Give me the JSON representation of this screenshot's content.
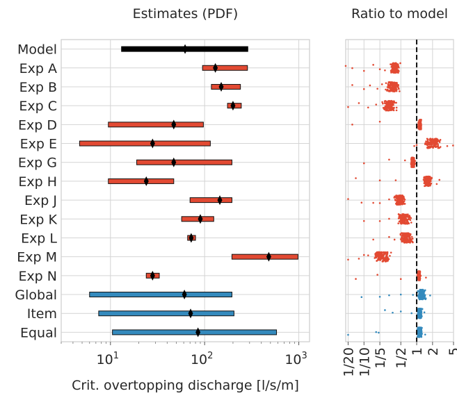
{
  "chart_data": [
    {
      "type": "interval",
      "title": "Estimates (PDF)",
      "xlabel": "Crit. overtopping discharge [l/s/m]",
      "xscale": "log",
      "xlim": [
        3,
        1300
      ],
      "xticks": [
        {
          "value": 10,
          "base": "10",
          "exp": "1"
        },
        {
          "value": 100,
          "base": "10",
          "exp": "2"
        },
        {
          "value": 1000,
          "base": "10",
          "exp": "3"
        }
      ],
      "rows": [
        {
          "label": "Model",
          "low": 13,
          "high": 290,
          "median": 62,
          "group": "model"
        },
        {
          "label": "Exp A",
          "low": 95,
          "high": 285,
          "median": 130,
          "group": "expert"
        },
        {
          "label": "Exp B",
          "low": 118,
          "high": 240,
          "median": 150,
          "group": "expert"
        },
        {
          "label": "Exp C",
          "low": 175,
          "high": 245,
          "median": 200,
          "group": "expert"
        },
        {
          "label": "Exp D",
          "low": 9.5,
          "high": 97,
          "median": 47,
          "group": "expert"
        },
        {
          "label": "Exp E",
          "low": 4.7,
          "high": 115,
          "median": 28,
          "group": "expert"
        },
        {
          "label": "Exp G",
          "low": 19,
          "high": 195,
          "median": 47,
          "group": "expert"
        },
        {
          "label": "Exp H",
          "low": 9.5,
          "high": 47,
          "median": 24,
          "group": "expert"
        },
        {
          "label": "Exp J",
          "low": 70,
          "high": 195,
          "median": 145,
          "group": "expert"
        },
        {
          "label": "Exp K",
          "low": 57,
          "high": 125,
          "median": 90,
          "group": "expert"
        },
        {
          "label": "Exp L",
          "low": 66,
          "high": 80,
          "median": 72,
          "group": "expert"
        },
        {
          "label": "Exp M",
          "low": 195,
          "high": 980,
          "median": 480,
          "group": "expert"
        },
        {
          "label": "Exp N",
          "low": 24,
          "high": 33,
          "median": 28,
          "group": "expert"
        },
        {
          "label": "Global",
          "low": 6,
          "high": 195,
          "median": 61,
          "group": "combined"
        },
        {
          "label": "Item",
          "low": 7.5,
          "high": 205,
          "median": 71,
          "group": "combined"
        },
        {
          "label": "Equal",
          "low": 10.5,
          "high": 580,
          "median": 85,
          "group": "combined"
        }
      ],
      "colors": {
        "model": "#000000",
        "expert": "#e24a33",
        "combined": "#348abd"
      }
    },
    {
      "type": "scatter",
      "title": "Ratio to model",
      "xscale": "log",
      "xlim": [
        0.045,
        5
      ],
      "reference_line": 1,
      "xticks": [
        {
          "value": 0.05,
          "label": "1/20"
        },
        {
          "value": 0.1,
          "label": "1/10"
        },
        {
          "value": 0.2,
          "label": "1/5"
        },
        {
          "value": 0.5,
          "label": "1/2"
        },
        {
          "value": 1,
          "label": "1"
        },
        {
          "value": 2,
          "label": "2"
        },
        {
          "value": 5,
          "label": "5"
        }
      ],
      "rows": [
        {
          "label": "Exp A",
          "core": [
            0.3,
            0.5
          ],
          "outliers": [
            0.045,
            0.06,
            0.1,
            0.15,
            0.2,
            0.25
          ]
        },
        {
          "label": "Exp B",
          "core": [
            0.25,
            0.5
          ],
          "outliers": [
            0.06,
            0.1,
            0.13,
            0.18,
            0.22
          ]
        },
        {
          "label": "Exp C",
          "core": [
            0.2,
            0.45
          ],
          "outliers": [
            0.05,
            0.08,
            0.12,
            0.17
          ]
        },
        {
          "label": "Exp D",
          "core": [
            1.05,
            1.25
          ],
          "outliers": [
            0.06,
            0.2
          ]
        },
        {
          "label": "Exp E",
          "core": [
            1.2,
            3.2
          ],
          "outliers": [
            0.9,
            1.0,
            3.8,
            4.9
          ]
        },
        {
          "label": "Exp G",
          "core": [
            0.75,
            0.95
          ],
          "outliers": [
            0.1,
            0.3,
            0.6
          ]
        },
        {
          "label": "Exp H",
          "core": [
            1.3,
            2.0
          ],
          "outliers": [
            0.07,
            0.2,
            0.4,
            2.4,
            2.7
          ]
        },
        {
          "label": "Exp J",
          "core": [
            0.35,
            0.65
          ],
          "outliers": [
            0.05,
            0.09,
            0.15,
            0.2,
            0.3
          ]
        },
        {
          "label": "Exp K",
          "core": [
            0.4,
            0.85
          ],
          "outliers": [
            0.1,
            0.2,
            0.3
          ]
        },
        {
          "label": "Exp L",
          "core": [
            0.45,
            0.9
          ],
          "outliers": [
            0.15,
            0.3,
            0.38
          ]
        },
        {
          "label": "Exp M",
          "core": [
            0.14,
            0.35
          ],
          "outliers": [
            0.05,
            0.08,
            0.1,
            0.12
          ]
        },
        {
          "label": "Exp N",
          "core": [
            1.02,
            1.2
          ],
          "outliers": [
            0.07,
            0.18,
            0.5,
            1.5
          ]
        },
        {
          "label": "Global",
          "core": [
            1.0,
            1.55
          ],
          "outliers": [
            0.09,
            0.2,
            0.3,
            0.5,
            0.85,
            1.8
          ]
        },
        {
          "label": "Item",
          "core": [
            1.0,
            1.3
          ],
          "outliers": [
            0.25,
            0.35,
            0.5,
            0.8,
            1.4
          ]
        },
        {
          "label": "Equal",
          "core": [
            1.0,
            1.3
          ],
          "outliers": [
            0.05,
            0.17,
            0.19,
            1.45
          ]
        }
      ],
      "colors": {
        "expert": "#e24a33",
        "combined": "#348abd"
      }
    }
  ]
}
